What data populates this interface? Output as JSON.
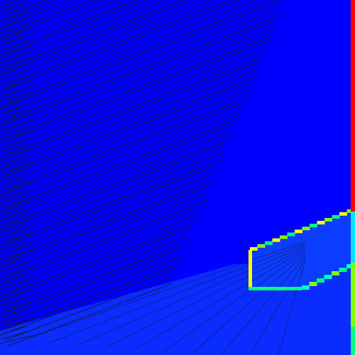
{
  "field": {
    "colormap": "jet",
    "background_color": "#0000ff",
    "lower_region_color": "#0a2cff",
    "inner_region_color": "#0b3cff",
    "line_color": "#17163a"
  },
  "boundaries": {
    "right_wall_color_top": "#ff0000",
    "right_wall_color_bottom": "#00e6ff",
    "obstacle_upper_edge_colors": [
      "#ffff00",
      "#7fff00",
      "#00ff7f"
    ],
    "obstacle_lower_edge_colors": [
      "#00ff7f",
      "#00ffcc",
      "#7fff00"
    ]
  }
}
